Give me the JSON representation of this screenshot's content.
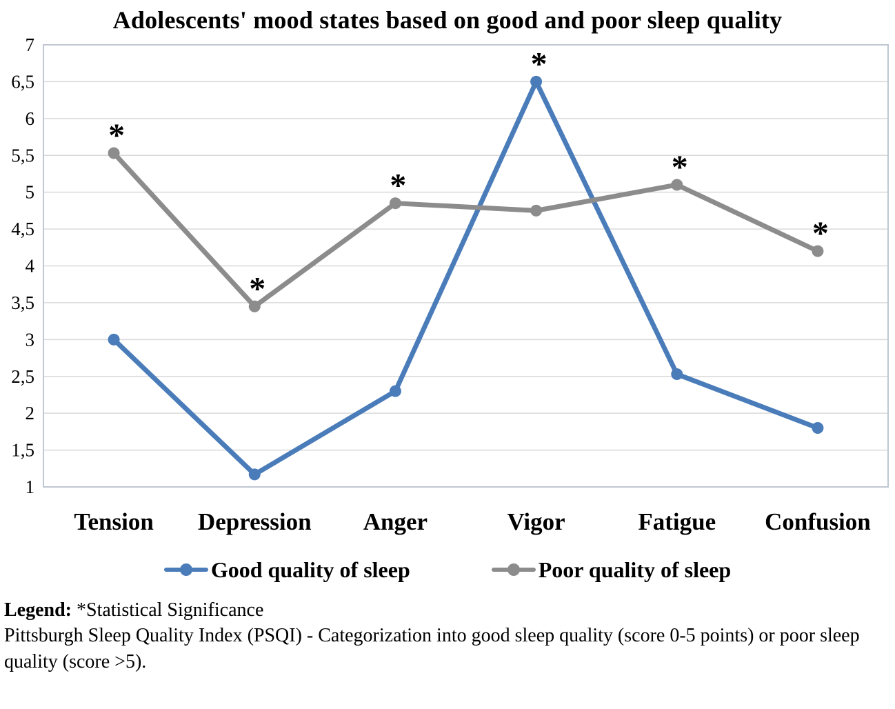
{
  "title": "Adolescents' mood states based on good and poor sleep quality",
  "chart_data": {
    "type": "line",
    "categories": [
      "Tension",
      "Depression",
      "Anger",
      "Vigor",
      "Fatigue",
      "Confusion"
    ],
    "series": [
      {
        "name": "Good quality of sleep",
        "color": "#4a7cba",
        "values": [
          3.0,
          1.17,
          2.3,
          6.5,
          2.53,
          1.8
        ],
        "significant": [
          false,
          false,
          false,
          true,
          false,
          false
        ]
      },
      {
        "name": "Poor quality of sleep",
        "color": "#8c8c8c",
        "values": [
          5.53,
          3.45,
          4.85,
          4.75,
          5.1,
          4.2
        ],
        "significant": [
          true,
          true,
          true,
          false,
          true,
          true
        ]
      }
    ],
    "ylim": [
      1,
      7
    ],
    "ytick_step": 0.5,
    "ytick_labels": [
      "1",
      "1,5",
      "2",
      "2,5",
      "3",
      "3,5",
      "4",
      "4,5",
      "5",
      "5,5",
      "6",
      "6,5",
      "7"
    ],
    "xlabel": "",
    "ylabel": "",
    "grid": true,
    "legend_position": "bottom",
    "significance_marker": "*",
    "grid_color": "#d9d9d9",
    "border_color": "#bfc7d2"
  },
  "legend": {
    "items": [
      {
        "label": "Good quality of sleep",
        "color": "#4a7cba"
      },
      {
        "label": "Poor quality of sleep",
        "color": "#8c8c8c"
      }
    ]
  },
  "caption": {
    "legend_label": "Legend:",
    "legend_text": " *Statistical Significance",
    "note": "Pittsburgh Sleep Quality Index (PSQI) - Categorization into good sleep quality (score 0-5 points) or poor sleep quality (score >5)."
  }
}
